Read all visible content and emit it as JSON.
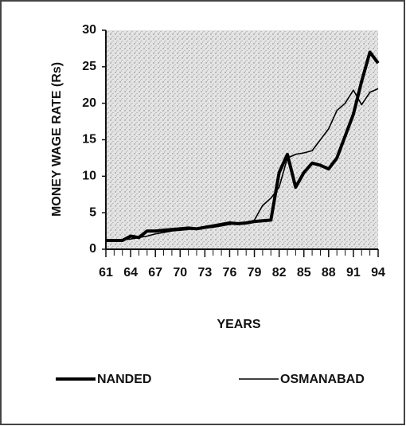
{
  "chart_data": {
    "type": "line",
    "y_label": "MONEY WAGE RATE (Rs)",
    "x_label": "YEARS",
    "x": [
      61,
      62,
      63,
      64,
      65,
      66,
      67,
      68,
      69,
      70,
      71,
      72,
      73,
      74,
      75,
      76,
      77,
      78,
      79,
      80,
      81,
      82,
      83,
      84,
      85,
      86,
      87,
      88,
      89,
      90,
      91,
      92,
      93,
      94
    ],
    "series": [
      {
        "name": "NANDED",
        "color": "#000000",
        "values": [
          1.2,
          1.2,
          1.2,
          1.8,
          1.6,
          2.5,
          2.5,
          2.6,
          2.7,
          2.8,
          2.9,
          2.8,
          3.0,
          3.2,
          3.4,
          3.6,
          3.5,
          3.6,
          3.8,
          3.9,
          4.0,
          10.5,
          13,
          8.5,
          10.5,
          11.8,
          11.5,
          11,
          12.5,
          15.5,
          18.5,
          23,
          27,
          25.5
        ]
      },
      {
        "name": "OSMANABAD",
        "color": "#000000",
        "values": [
          1.2,
          1.2,
          1.3,
          1.4,
          1.6,
          1.8,
          2.1,
          2.3,
          2.5,
          2.6,
          2.7,
          2.8,
          2.9,
          3.0,
          3.2,
          3.4,
          3.5,
          3.6,
          4.0,
          6.0,
          7.0,
          8.5,
          12.5,
          13.0,
          13.2,
          13.5,
          15,
          16.5,
          19,
          20,
          21.8,
          19.8,
          21.5,
          22
        ]
      }
    ],
    "xlim": [
      61,
      94
    ],
    "xticks": [
      61,
      64,
      67,
      70,
      73,
      76,
      79,
      82,
      85,
      88,
      91,
      94
    ],
    "ylim": [
      0,
      30
    ],
    "yticks": [
      0,
      5,
      10,
      15,
      20,
      25,
      30
    ]
  }
}
